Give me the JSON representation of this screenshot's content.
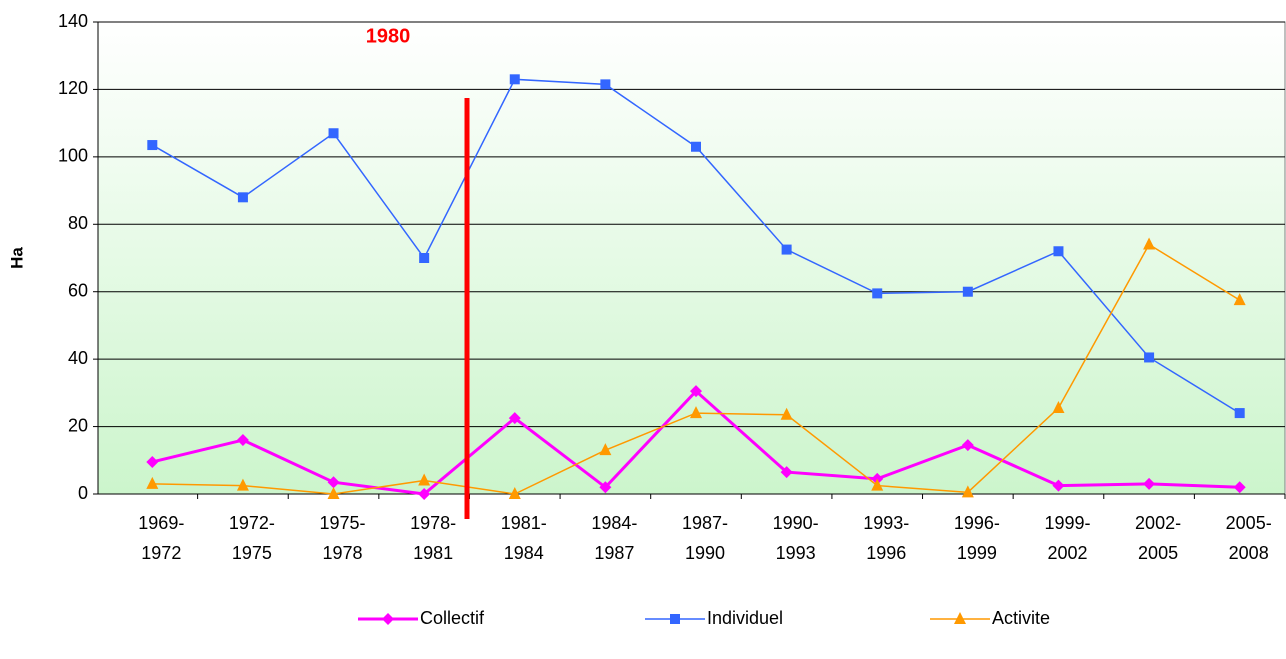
{
  "chart_data": {
    "type": "line",
    "y_label": "Ha",
    "annotation": "1980",
    "categories": [
      "1969-\n1972",
      "1972-\n1975",
      "1975-\n1978",
      "1978-\n1981",
      "1981-\n1984",
      "1984-\n1987",
      "1987-\n1990",
      "1990-\n1993",
      "1993-\n1996",
      "1996-\n1999",
      "1999-\n2002",
      "2002-\n2005",
      "2005-\n2008"
    ],
    "series": [
      {
        "name": "Collectif",
        "color": "#ff00ff",
        "marker": "diamond",
        "values": [
          9.5,
          16,
          3.5,
          0,
          22.5,
          2,
          30.5,
          6.5,
          4.5,
          14.5,
          2.5,
          3,
          2
        ]
      },
      {
        "name": "Individuel",
        "color": "#3366ff",
        "marker": "square",
        "values": [
          103.5,
          88,
          107,
          70,
          123,
          121.5,
          103,
          72.5,
          59.5,
          60,
          72,
          40.5,
          24
        ]
      },
      {
        "name": "Activite",
        "color": "#ff9900",
        "marker": "triangle",
        "values": [
          3,
          2.5,
          0,
          4,
          0,
          13,
          24,
          23.5,
          2.5,
          0.5,
          25.5,
          74,
          57.5
        ]
      }
    ],
    "ylim": [
      0,
      140
    ],
    "yticks": [
      0,
      20,
      40,
      60,
      80,
      100,
      120,
      140
    ],
    "grid": true
  }
}
